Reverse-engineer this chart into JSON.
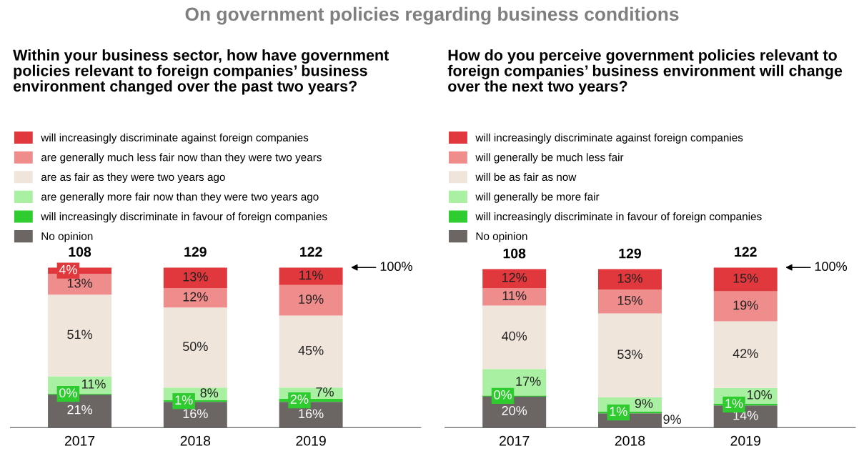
{
  "chart_data": [
    {
      "type": "bar",
      "stacked": true,
      "legend": "top",
      "title": "On government policies regarding business conditions",
      "subtitle": "Within your business sector, how have government\npolicies relevant to foreign companies’ business\nenvironment changed over the past two years?",
      "categories": [
        "2017",
        "2018",
        "2019"
      ],
      "annotations": [
        {
          "text": "108",
          "x": "2017",
          "y": 100
        },
        {
          "text": "129",
          "x": "2018",
          "y": 100
        },
        {
          "text": "122",
          "x": "2019",
          "y": 100
        },
        "100%"
      ],
      "series": [
        {
          "name": "No opinion",
          "color": "#6b6664",
          "values": [
            21,
            16,
            16
          ],
          "value_labels": [
            "21%",
            "16%",
            "16%"
          ]
        },
        {
          "name": "will increasingly discriminate in favour of foreign companies",
          "color": "#2ecc2e",
          "values": [
            0,
            1,
            2
          ],
          "value_labels": [
            "0%",
            "1%",
            "2%"
          ]
        },
        {
          "name": "are generally more fair now than they were two years ago",
          "color": "#aaf0a2",
          "values": [
            11,
            8,
            7
          ],
          "value_labels": [
            "11%",
            "8%",
            "7%"
          ]
        },
        {
          "name": "are as fair as they were two years ago",
          "color": "#efe5da",
          "values": [
            51,
            50,
            45
          ],
          "value_labels": [
            "51%",
            "50%",
            "45%"
          ]
        },
        {
          "name": "are generally much less fair now than they were two years",
          "color": "#ef8c8c",
          "values": [
            13,
            12,
            19
          ],
          "value_labels": [
            "13%",
            "12%",
            "19%"
          ]
        },
        {
          "name": "will increasingly discriminate against foreign companies",
          "color": "#e0383c",
          "values": [
            4,
            13,
            11
          ],
          "value_labels": [
            "4%",
            "13%",
            "11%"
          ]
        }
      ]
    },
    {
      "type": "bar",
      "stacked": true,
      "legend": "top",
      "subtitle": "How do you perceive government policies relevant to\nforeign companies’ business environment will change\nover the next two years?",
      "categories": [
        "2017",
        "2018",
        "2019"
      ],
      "annotations": [
        {
          "text": "108",
          "x": "2017",
          "y": 100
        },
        {
          "text": "129",
          "x": "2018",
          "y": 100
        },
        {
          "text": "122",
          "x": "2019",
          "y": 101
        },
        "100%"
      ],
      "series": [
        {
          "name": "No opinion",
          "color": "#6b6664",
          "values": [
            20,
            9,
            14
          ],
          "value_labels": [
            "20%",
            "9%",
            "14%"
          ]
        },
        {
          "name": "will increasingly discriminate in favour of foreign companies",
          "color": "#2ecc2e",
          "values": [
            0,
            1,
            1
          ],
          "value_labels": [
            "0%",
            "1%",
            "1%"
          ]
        },
        {
          "name": "will generally be more fair",
          "color": "#aaf0a2",
          "values": [
            17,
            9,
            10
          ],
          "value_labels": [
            "17%",
            "9%",
            "10%"
          ]
        },
        {
          "name": "will be as fair as now",
          "color": "#efe5da",
          "values": [
            40,
            53,
            42
          ],
          "value_labels": [
            "40%",
            "53%",
            "42%"
          ]
        },
        {
          "name": "will generally be much less fair",
          "color": "#ef8c8c",
          "values": [
            11,
            15,
            19
          ],
          "value_labels": [
            "11%",
            "15%",
            "19%"
          ]
        },
        {
          "name": "will increasingly discriminate against foreign companies",
          "color": "#e0383c",
          "values": [
            12,
            13,
            15
          ],
          "value_labels": [
            "12%",
            "13%",
            "15%"
          ]
        }
      ]
    }
  ]
}
